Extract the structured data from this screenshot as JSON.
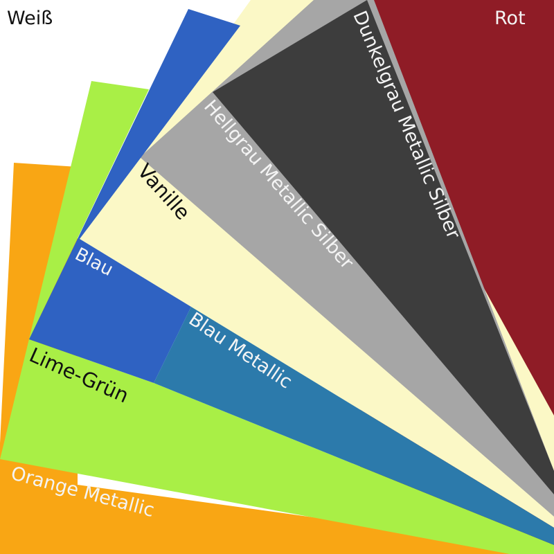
{
  "labels": {
    "weiss": "Weiß",
    "rot": "Rot",
    "dunkelgrau": "Dunkelgrau Metallic Silber",
    "hellgrau": "Hellgrau Metallic Silber",
    "vanille": "Vanille",
    "blau": "Blau",
    "blau_metallic": "Blau Metallic",
    "lime": "Lime-Grün",
    "orange": "Orange Metallic"
  },
  "colors": {
    "weiss": "#ffffff",
    "rot": "#8f1c26",
    "dunkelgrau": "#3d3d3d",
    "hellgrau": "#a6a6a6",
    "vanille": "#fbf8c6",
    "blau": "#2f62c2",
    "blau_metallic": "#2c7aab",
    "lime": "#a9ef46",
    "orange": "#f9a614"
  }
}
